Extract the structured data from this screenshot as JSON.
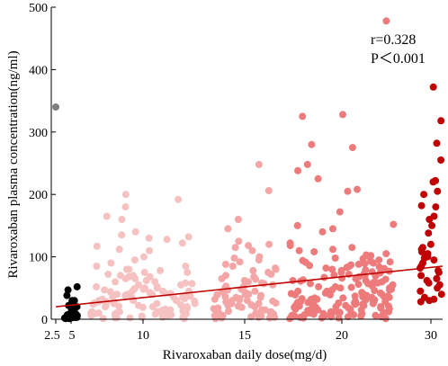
{
  "chart_data": {
    "type": "scatter",
    "title": "",
    "xlabel": "Rivaroxaban daily dose(mg/d)",
    "ylabel": "Rivaroxaban plasma concentration(ng/ml)",
    "ylim": [
      0,
      500
    ],
    "y_ticks": [
      0,
      100,
      200,
      300,
      400,
      500
    ],
    "x_ticks": [
      "2.5",
      "5",
      "10",
      "15",
      "20",
      "30"
    ],
    "x_scale": "categorical-jittered",
    "grid": false,
    "annotations": [
      "r=0.328",
      "P＜0.001"
    ],
    "trendline": {
      "color": "#c00000",
      "from": {
        "x": "2.5",
        "y": 20
      },
      "to": {
        "x": "30",
        "y": 85
      }
    },
    "series": [
      {
        "x": "2.5",
        "color": "#7f7f7f",
        "values": [
          340
        ]
      },
      {
        "x": "5",
        "color": "#000000",
        "values": [
          52,
          47,
          38,
          30,
          25,
          22,
          20,
          18,
          15,
          12,
          10,
          9,
          7,
          5,
          4,
          3,
          2,
          15,
          10,
          6,
          3,
          1,
          2,
          5,
          8,
          12,
          30,
          20,
          3,
          1
        ]
      },
      {
        "x": "10",
        "color": "#f6c1c1",
        "values": [
          200,
          192,
          180,
          165,
          160,
          140,
          135,
          132,
          130,
          128,
          122,
          117,
          112,
          110,
          100,
          95,
          90,
          85,
          85,
          80,
          80,
          78,
          75,
          75,
          72,
          70,
          70,
          68,
          65,
          65,
          62,
          60,
          60,
          58,
          55,
          55,
          52,
          50,
          50,
          48,
          45,
          45,
          45,
          42,
          40,
          40,
          40,
          38,
          35,
          35,
          35,
          32,
          30,
          30,
          30,
          28,
          28,
          25,
          25,
          25,
          22,
          22,
          20,
          20,
          20,
          18,
          18,
          15,
          15,
          15,
          12,
          12,
          10,
          10,
          10,
          8,
          8,
          6,
          5,
          5,
          4,
          3,
          2,
          2,
          1,
          1,
          3,
          6,
          9,
          12,
          17,
          24,
          33,
          44,
          57,
          68,
          14,
          21,
          27,
          36,
          43,
          52,
          7,
          11,
          16,
          19,
          26,
          31,
          39,
          47,
          3,
          5,
          9,
          13,
          23,
          29,
          37,
          41,
          49,
          2
        ]
      },
      {
        "x": "15",
        "color": "#f4a6a6",
        "values": [
          248,
          206,
          160,
          145,
          125,
          120,
          118,
          115,
          110,
          100,
          98,
          95,
          92,
          88,
          85,
          82,
          80,
          78,
          75,
          72,
          70,
          68,
          65,
          62,
          60,
          58,
          55,
          52,
          50,
          48,
          45,
          45,
          42,
          40,
          40,
          38,
          35,
          35,
          32,
          30,
          30,
          28,
          25,
          25,
          22,
          20,
          20,
          18,
          15,
          15,
          12,
          10,
          10,
          8,
          6,
          5,
          4,
          3,
          2,
          1,
          2,
          4,
          7,
          11,
          17,
          23,
          29,
          36,
          44,
          53,
          64,
          13,
          19,
          26,
          33,
          9,
          14,
          21,
          31,
          39,
          47,
          57,
          3,
          6
        ]
      },
      {
        "x": "20",
        "color": "#ee7b7b",
        "values": [
          478,
          328,
          325,
          280,
          275,
          248,
          238,
          225,
          208,
          205,
          172,
          152,
          150,
          145,
          140,
          122,
          118,
          112,
          110,
          108,
          105,
          102,
          100,
          98,
          95,
          92,
          90,
          88,
          85,
          82,
          80,
          78,
          75,
          72,
          70,
          68,
          65,
          62,
          60,
          58,
          55,
          52,
          50,
          50,
          48,
          45,
          45,
          42,
          40,
          40,
          38,
          35,
          35,
          32,
          30,
          30,
          28,
          28,
          25,
          25,
          22,
          22,
          20,
          20,
          18,
          18,
          15,
          15,
          12,
          12,
          10,
          10,
          8,
          8,
          6,
          6,
          5,
          4,
          3,
          2,
          1,
          1,
          2,
          4,
          6,
          9,
          11,
          14,
          17,
          21,
          24,
          27,
          33,
          37,
          41,
          46,
          51,
          57,
          63,
          67,
          73,
          77,
          83,
          87,
          93,
          97,
          103,
          115,
          3,
          5,
          7,
          13,
          16,
          19,
          23,
          26,
          29,
          31,
          34,
          36,
          39,
          43,
          47,
          53,
          56,
          59,
          61,
          64,
          66,
          69,
          71,
          74,
          76,
          79,
          81,
          84,
          86,
          89,
          91,
          94,
          12,
          17,
          22,
          27,
          32,
          37,
          42,
          47,
          52,
          57,
          62,
          2,
          4,
          7,
          9,
          11,
          14,
          16,
          19,
          21,
          24,
          26,
          29,
          31,
          34,
          36,
          39
        ]
      },
      {
        "x": "30",
        "color": "#c00000",
        "values": [
          372,
          318,
          282,
          255,
          222,
          220,
          205,
          200,
          182,
          180,
          165,
          160,
          150,
          138,
          120,
          115,
          112,
          108,
          105,
          100,
          98,
          95,
          90,
          85,
          82,
          78,
          75,
          70,
          65,
          62,
          58,
          55,
          50,
          45,
          40,
          35,
          32,
          30,
          28
        ]
      }
    ]
  }
}
